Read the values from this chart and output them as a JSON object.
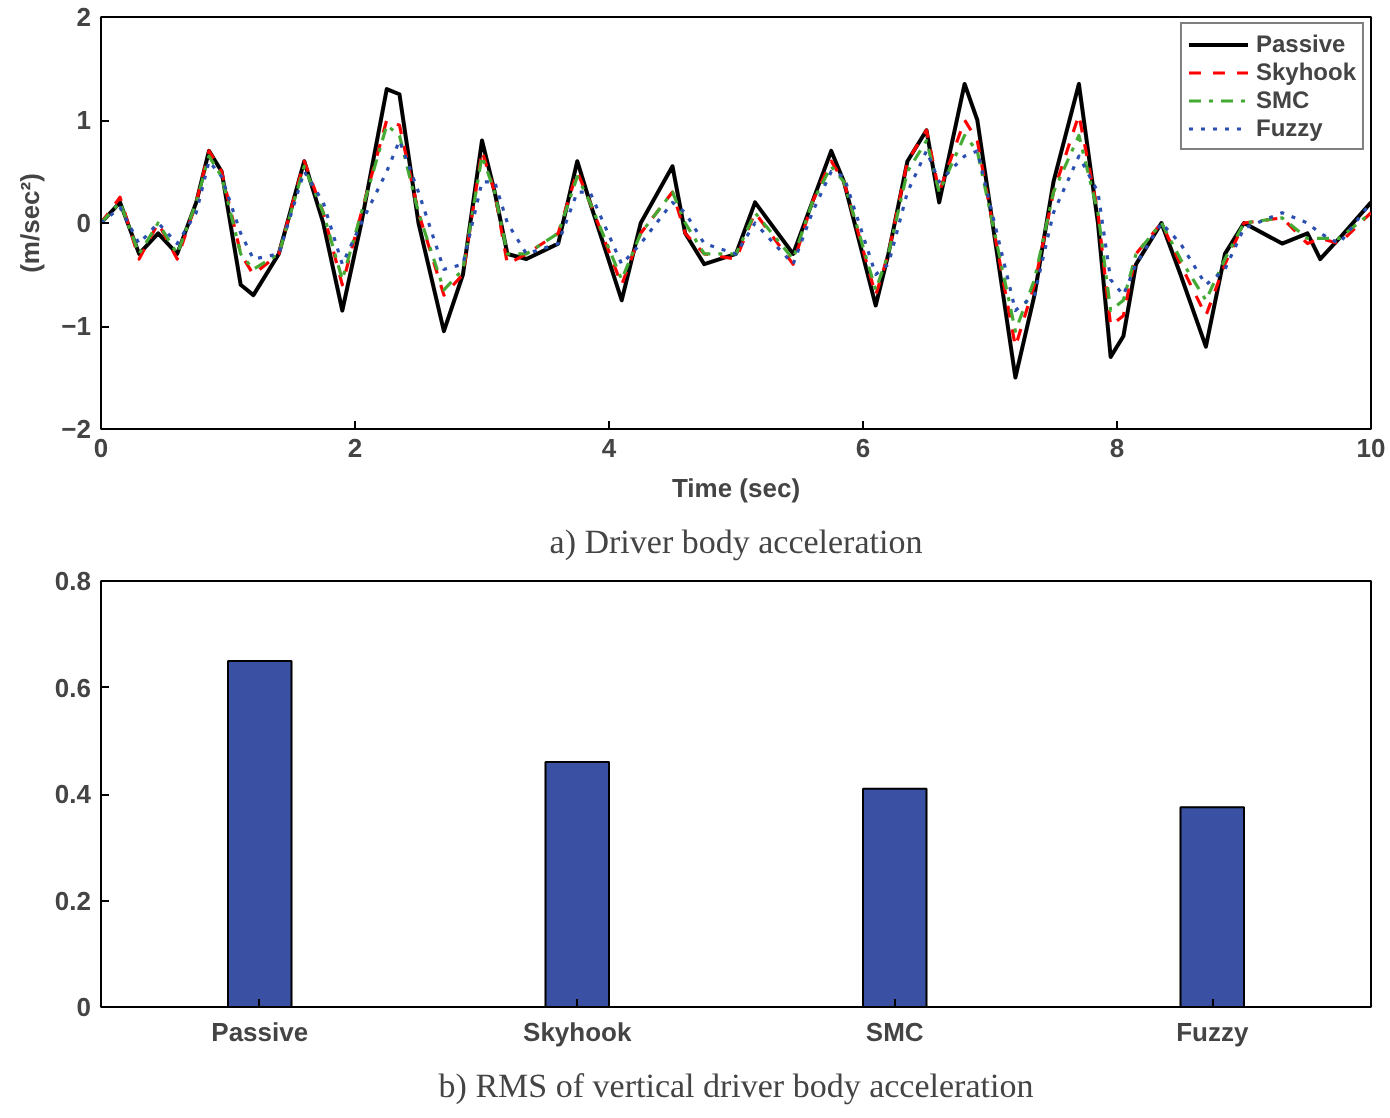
{
  "chart_data": [
    {
      "type": "line",
      "xlabel": "Time (sec)",
      "ylabel": "(m/sec²)",
      "annotations": [
        "a) Driver body acceleration"
      ],
      "xlim": [
        0,
        10
      ],
      "ylim": [
        -2,
        2
      ],
      "xticks": [
        0,
        2,
        4,
        6,
        8,
        10
      ],
      "yticks": [
        -2,
        -1,
        0,
        1,
        2
      ],
      "grid": false,
      "legend": "top right",
      "x": [
        0,
        0.15,
        0.3,
        0.45,
        0.6,
        0.75,
        0.85,
        0.95,
        1.1,
        1.2,
        1.4,
        1.6,
        1.75,
        1.9,
        2.05,
        2.25,
        2.35,
        2.5,
        2.7,
        2.85,
        3.0,
        3.1,
        3.2,
        3.35,
        3.6,
        3.75,
        3.85,
        4.1,
        4.25,
        4.5,
        4.6,
        4.75,
        5.0,
        5.15,
        5.45,
        5.6,
        5.75,
        5.85,
        6.1,
        6.2,
        6.35,
        6.5,
        6.6,
        6.8,
        6.9,
        7.2,
        7.35,
        7.5,
        7.7,
        7.85,
        7.95,
        8.05,
        8.15,
        8.35,
        8.5,
        8.7,
        8.85,
        9.0,
        9.3,
        9.5,
        9.6,
        9.75,
        10
      ],
      "series": [
        {
          "name": "Passive",
          "color": "#000000",
          "line_style": "solid",
          "values": [
            0,
            0.2,
            -0.3,
            -0.1,
            -0.3,
            0.2,
            0.7,
            0.5,
            -0.6,
            -0.7,
            -0.3,
            0.6,
            0,
            -0.85,
            0,
            1.3,
            1.25,
            0,
            -1.05,
            -0.5,
            0.8,
            0.3,
            -0.3,
            -0.35,
            -0.2,
            0.6,
            0.2,
            -0.75,
            0,
            0.55,
            -0.1,
            -0.4,
            -0.3,
            0.2,
            -0.3,
            0.2,
            0.7,
            0.4,
            -0.8,
            -0.3,
            0.6,
            0.9,
            0.2,
            1.35,
            1.0,
            -1.5,
            -0.7,
            0.4,
            1.35,
            0,
            -1.3,
            -1.1,
            -0.4,
            0,
            -0.5,
            -1.2,
            -0.3,
            0,
            -0.2,
            -0.1,
            -0.35,
            -0.15,
            0.2
          ]
        },
        {
          "name": "Skyhook",
          "color": "#ff0000",
          "line_style": "dashed",
          "values": [
            0,
            0.25,
            -0.35,
            0,
            -0.35,
            0.2,
            0.7,
            0.5,
            -0.3,
            -0.5,
            -0.3,
            0.6,
            0.1,
            -0.6,
            0.1,
            1.0,
            0.95,
            0.1,
            -0.7,
            -0.5,
            0.7,
            0.3,
            -0.4,
            -0.3,
            -0.1,
            0.5,
            0.2,
            -0.6,
            -0.1,
            0.3,
            -0.1,
            -0.3,
            -0.35,
            0.1,
            -0.4,
            0.2,
            0.6,
            0.4,
            -0.7,
            -0.3,
            0.6,
            0.9,
            0.3,
            1.0,
            0.8,
            -1.2,
            -0.6,
            0.3,
            1.05,
            0.1,
            -1.0,
            -0.9,
            -0.3,
            0,
            -0.4,
            -0.9,
            -0.4,
            0,
            0.05,
            -0.2,
            -0.15,
            -0.2,
            0.1
          ]
        },
        {
          "name": "SMC",
          "color": "#44aa33",
          "line_style": "dashdot",
          "values": [
            0,
            0.2,
            -0.3,
            0,
            -0.3,
            0.2,
            0.65,
            0.45,
            -0.3,
            -0.45,
            -0.3,
            0.55,
            0.1,
            -0.55,
            0.1,
            0.95,
            0.85,
            0.1,
            -0.65,
            -0.45,
            0.65,
            0.3,
            -0.3,
            -0.3,
            -0.1,
            0.45,
            0.2,
            -0.55,
            -0.1,
            0.3,
            0,
            -0.3,
            -0.3,
            0.1,
            -0.35,
            0.2,
            0.55,
            0.4,
            -0.65,
            -0.3,
            0.5,
            0.8,
            0.3,
            0.85,
            0.7,
            -1.05,
            -0.55,
            0.3,
            0.85,
            0.1,
            -0.85,
            -0.75,
            -0.3,
            0,
            -0.35,
            -0.75,
            -0.35,
            0,
            0.05,
            -0.15,
            -0.15,
            -0.15,
            0.1
          ]
        },
        {
          "name": "Fuzzy",
          "color": "#2a4fb0",
          "line_style": "dotted",
          "values": [
            0,
            0.15,
            -0.2,
            0,
            -0.2,
            0.1,
            0.6,
            0.45,
            -0.1,
            -0.35,
            -0.3,
            0.5,
            0.2,
            -0.4,
            0,
            0.5,
            0.8,
            0.3,
            -0.45,
            -0.4,
            0.4,
            0.4,
            0,
            -0.3,
            -0.2,
            0.3,
            0.3,
            -0.4,
            -0.2,
            0.2,
            0.1,
            -0.2,
            -0.3,
            0,
            -0.4,
            0.1,
            0.5,
            0.45,
            -0.5,
            -0.4,
            0.3,
            0.7,
            0.4,
            0.65,
            0.7,
            -0.85,
            -0.7,
            0.1,
            0.65,
            0.3,
            -0.55,
            -0.7,
            -0.4,
            0,
            -0.2,
            -0.6,
            -0.45,
            -0.05,
            0.1,
            0,
            -0.1,
            -0.2,
            0.2
          ]
        }
      ]
    },
    {
      "type": "bar",
      "annotations": [
        "b) RMS of vertical driver body acceleration"
      ],
      "categories": [
        "Passive",
        "Skyhook",
        "SMC",
        "Fuzzy"
      ],
      "values": [
        0.65,
        0.46,
        0.41,
        0.375
      ],
      "color": "#3a51a3",
      "ylim": [
        0,
        0.8
      ],
      "yticks": [
        0,
        0.2,
        0.4,
        0.6,
        0.8
      ],
      "grid": false
    }
  ]
}
